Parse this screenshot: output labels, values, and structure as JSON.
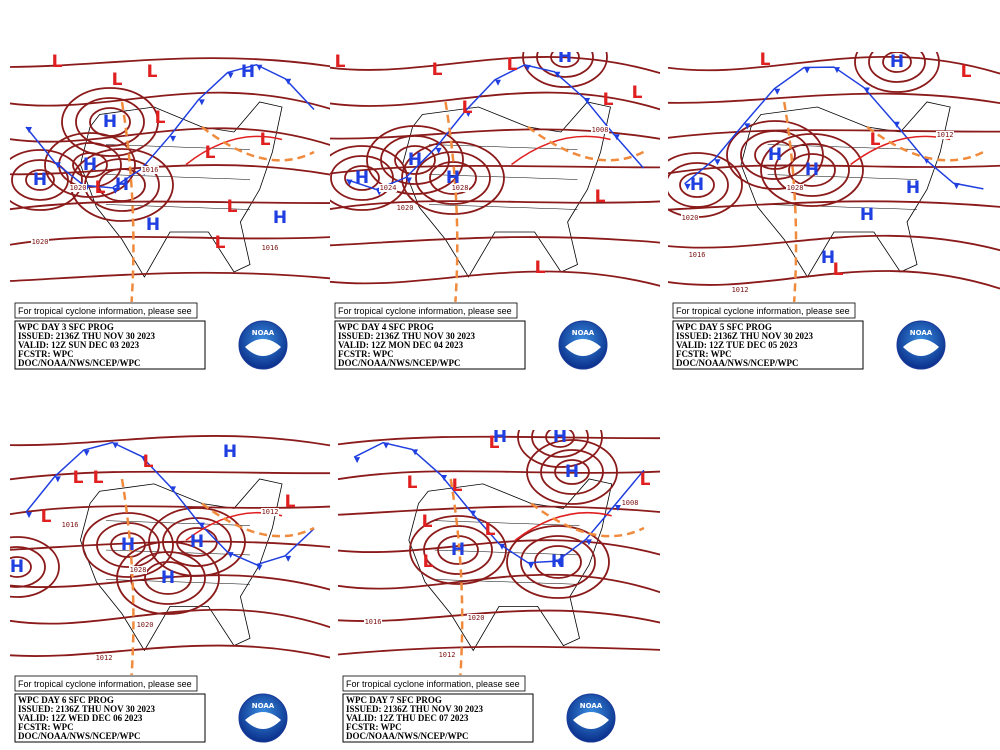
{
  "panels": [
    {
      "notice": "For tropical cyclone information, please see",
      "title": "WPC DAY 3 SFC PROG",
      "issued": "ISSUED: 2136Z THU NOV 30 2023",
      "valid": "VALID: 12Z SUN DEC 03 2023",
      "forecaster": "FCSTR: WPC",
      "office": "DOC/NOAA/NWS/NCEP/WPC",
      "logo": "NOAA",
      "centers": [
        "H",
        "H",
        "H",
        "H",
        "H",
        "H",
        "H",
        "L",
        "L",
        "L",
        "L",
        "L",
        "L",
        "L",
        "L",
        "L"
      ],
      "isobars": [
        "1020",
        "1016",
        "1020",
        "1016"
      ]
    },
    {
      "notice": "For tropical cyclone information, please see",
      "title": "WPC DAY 4 SFC PROG",
      "issued": "ISSUED: 2136Z THU NOV 30 2023",
      "valid": "VALID: 12Z MON DEC 04 2023",
      "forecaster": "FCSTR: WPC",
      "office": "DOC/NOAA/NWS/NCEP/WPC",
      "logo": "NOAA",
      "centers": [
        "H",
        "H",
        "H",
        "H",
        "L",
        "L",
        "L",
        "L",
        "L",
        "L",
        "L",
        "L"
      ],
      "isobars": [
        "1024",
        "1028",
        "1020",
        "1008"
      ]
    },
    {
      "notice": "For tropical cyclone information, please see",
      "title": "WPC DAY 5 SFC PROG",
      "issued": "ISSUED: 2136Z THU NOV 30 2023",
      "valid": "VALID: 12Z TUE DEC 05 2023",
      "forecaster": "FCSTR: WPC",
      "office": "DOC/NOAA/NWS/NCEP/WPC",
      "logo": "NOAA",
      "centers": [
        "H",
        "H",
        "H",
        "H",
        "H",
        "H",
        "H",
        "L",
        "L",
        "L",
        "L"
      ],
      "isobars": [
        "1028",
        "1020",
        "1016",
        "1012",
        "1012"
      ]
    },
    {
      "notice": "For tropical cyclone information, please see",
      "title": "WPC DAY 6 SFC PROG",
      "issued": "ISSUED: 2136Z THU NOV 30 2023",
      "valid": "VALID: 12Z WED DEC 06 2023",
      "forecaster": "FCSTR: WPC",
      "office": "DOC/NOAA/NWS/NCEP/WPC",
      "logo": "NOAA",
      "centers": [
        "H",
        "H",
        "H",
        "H",
        "H",
        "L",
        "L",
        "L",
        "L",
        "L"
      ],
      "isobars": [
        "1028",
        "1020",
        "1012",
        "1016",
        "1012"
      ]
    },
    {
      "notice": "For tropical cyclone information, please see",
      "title": "WPC DAY 7 SFC PROG",
      "issued": "ISSUED: 2136Z THU NOV 30 2023",
      "valid": "VALID: 12Z THU DEC 07 2023",
      "forecaster": "FCSTR: WPC",
      "office": "DOC/NOAA/NWS/NCEP/WPC",
      "logo": "NOAA",
      "centers": [
        "H",
        "H",
        "H",
        "H",
        "H",
        "L",
        "L",
        "L",
        "L",
        "L",
        "L",
        "L"
      ],
      "isobars": [
        "1020",
        "1016",
        "1012",
        "1008"
      ]
    }
  ]
}
